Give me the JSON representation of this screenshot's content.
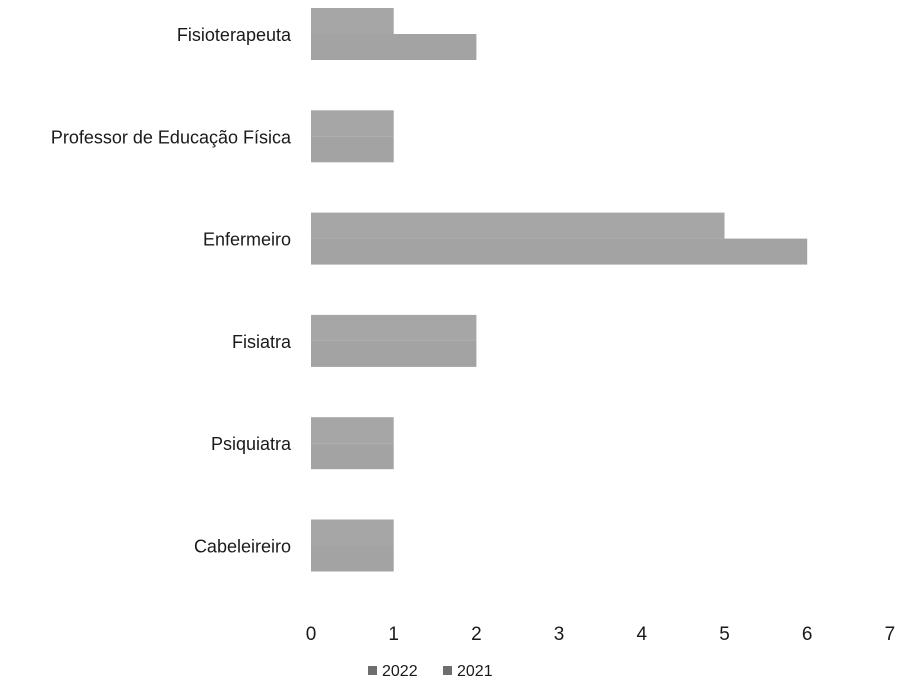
{
  "chart_data": {
    "type": "bar",
    "orientation": "horizontal",
    "categories": [
      "Fisioterapeuta",
      "Professor de Educação Física",
      "Enfermeiro",
      "Fisiatra",
      "Psiquiatra",
      "Cabeleireiro"
    ],
    "series": [
      {
        "name": "2022",
        "values": [
          1,
          1,
          5,
          2,
          1,
          1
        ],
        "color": "#a6a6a6"
      },
      {
        "name": "2021",
        "values": [
          2,
          1,
          6,
          2,
          1,
          1
        ],
        "color": "#a3a3a3"
      }
    ],
    "title": "",
    "xlabel": "",
    "ylabel": "",
    "xlim": [
      0,
      7
    ],
    "xticks": [
      "0",
      "1",
      "2",
      "3",
      "4",
      "5",
      "6",
      "7"
    ],
    "grid": false,
    "legend_position": "bottom-center"
  }
}
